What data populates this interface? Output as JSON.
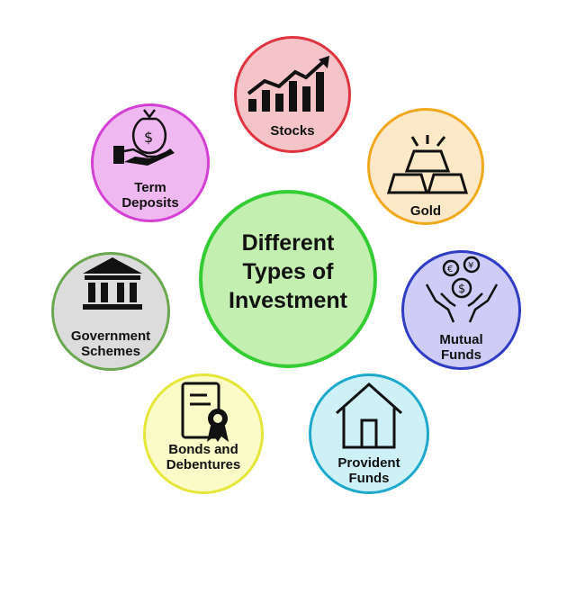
{
  "title": "Different\nTypes of\nInvestment",
  "items": {
    "stocks": {
      "label": "Stocks",
      "icon": "bar-chart-growth-icon",
      "fill": "#f4c4c8",
      "border": "#e0323f"
    },
    "gold": {
      "label": "Gold",
      "icon": "gold-bars-icon",
      "fill": "#fde8c8",
      "border": "#f2a81d"
    },
    "mutual": {
      "label": "Mutual\nFunds",
      "icon": "hands-coins-icon",
      "fill": "#cfcdf7",
      "border": "#2f3cc6"
    },
    "provident": {
      "label": "Provident\nFunds",
      "icon": "house-icon",
      "fill": "#cdf1f6",
      "border": "#1ea9cc"
    },
    "bonds": {
      "label": "Bonds and\nDebentures",
      "icon": "certificate-icon",
      "fill": "#fbfbc8",
      "border": "#e6e63a"
    },
    "government": {
      "label": "Government\nSchemes",
      "icon": "government-building-icon",
      "fill": "#dcdcdc",
      "border": "#6aa84f"
    },
    "term": {
      "label": "Term\nDeposits",
      "icon": "money-bag-hand-icon",
      "fill": "#f0b8f0",
      "border": "#d43fd4"
    }
  },
  "colors": {
    "center_fill": "#c3efb0",
    "center_border": "#33cc33"
  }
}
